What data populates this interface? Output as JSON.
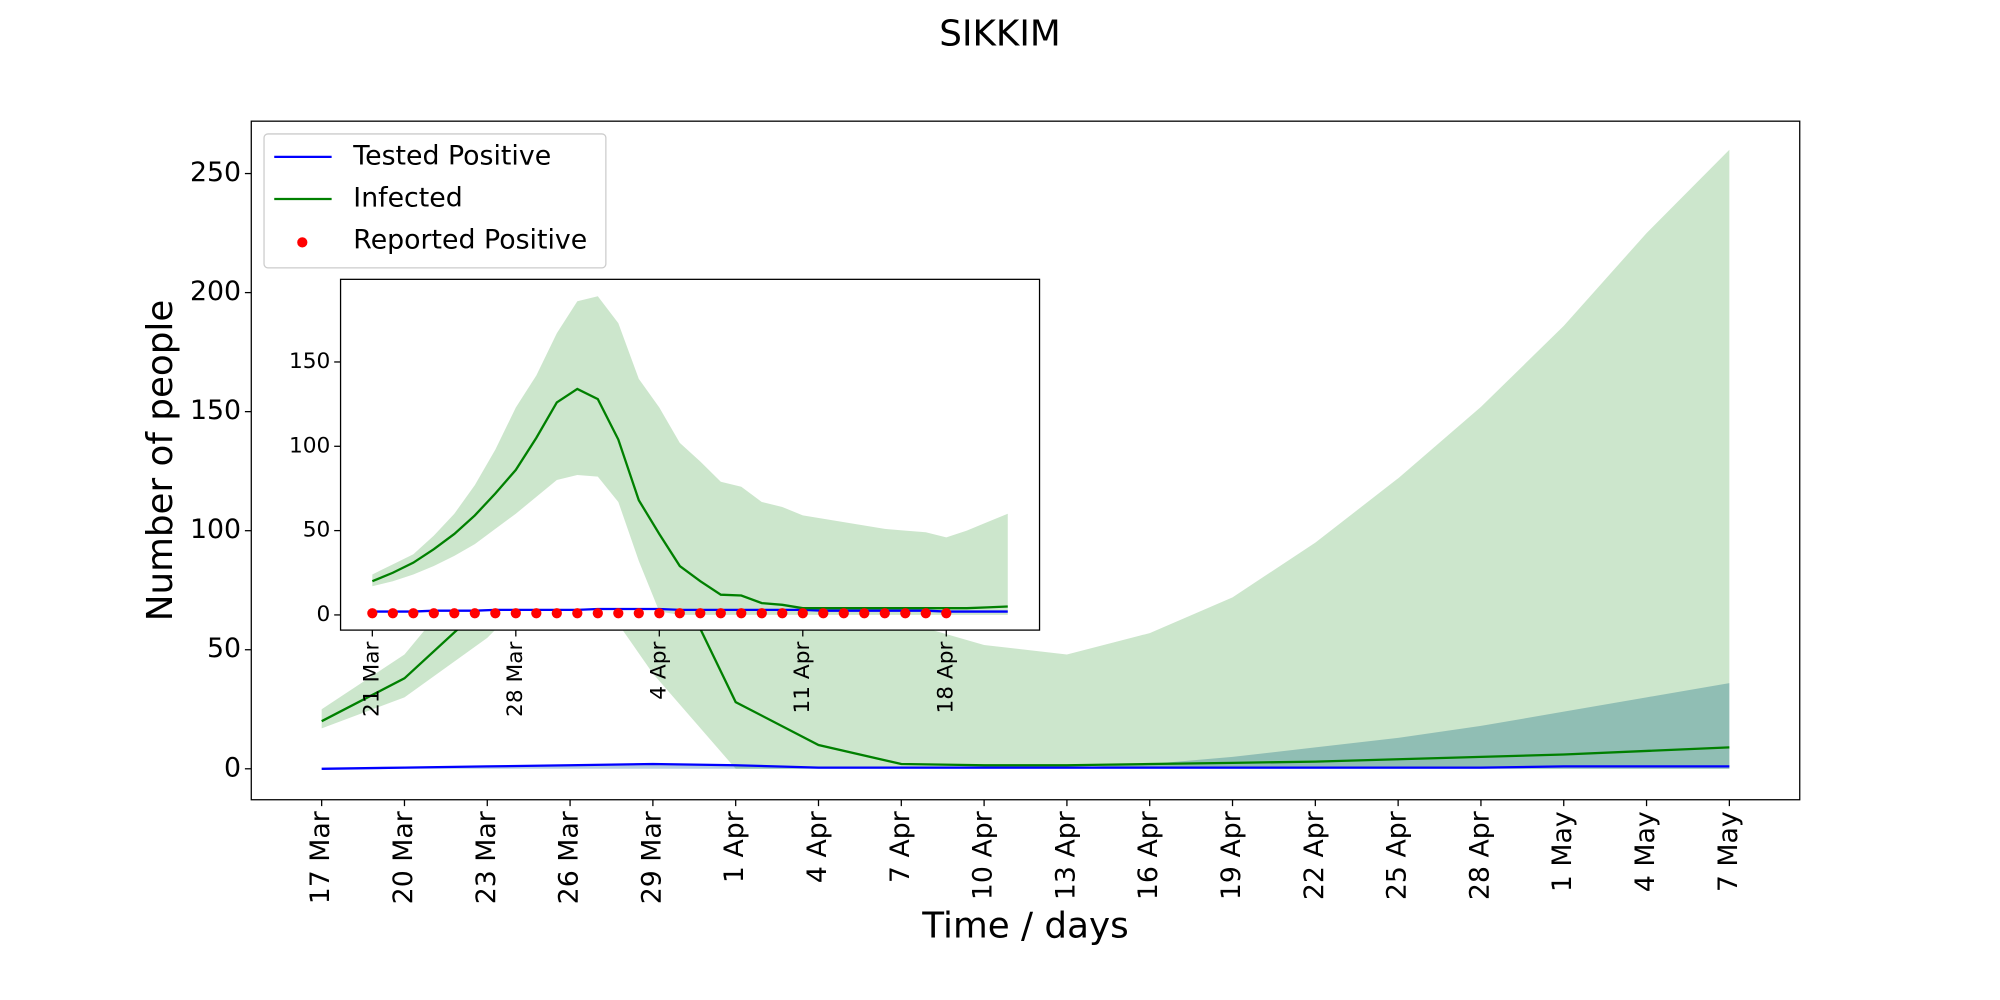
{
  "chart_data": [
    {
      "type": "line",
      "title": "SIKKIM",
      "xlabel": "Time / days",
      "ylabel": "Number of people",
      "x": [
        "17 Mar",
        "20 Mar",
        "23 Mar",
        "26 Mar",
        "29 Mar",
        "1 Apr",
        "4 Apr",
        "7 Apr",
        "10 Apr",
        "13 Apr",
        "16 Apr",
        "19 Apr",
        "22 Apr",
        "25 Apr",
        "28 Apr",
        "1 May",
        "4 May",
        "7 May"
      ],
      "xticks": [
        "17 Mar",
        "20 Mar",
        "23 Mar",
        "26 Mar",
        "29 Mar",
        "1 Apr",
        "4 Apr",
        "7 Apr",
        "10 Apr",
        "13 Apr",
        "16 Apr",
        "19 Apr",
        "22 Apr",
        "25 Apr",
        "28 Apr",
        "1 May",
        "4 May",
        "7 May"
      ],
      "ylim": [
        -13,
        272
      ],
      "yticks": [
        0,
        50,
        100,
        150,
        200,
        250
      ],
      "legend": "upper left",
      "series": [
        {
          "name": "Tested Positive",
          "color": "#0000ff",
          "values": [
            0,
            0.5,
            1,
            1.5,
            2,
            1.5,
            0.5,
            0.5,
            0.5,
            0.5,
            0.5,
            0.5,
            0.5,
            0.5,
            0.5,
            1,
            1,
            1
          ],
          "band": {
            "color": "#4682b4",
            "lower": [
              0,
              0,
              0,
              0,
              0,
              0,
              0,
              0,
              0,
              0,
              0,
              0,
              0,
              0,
              0,
              0,
              0,
              0
            ],
            "upper": [
              0,
              0.5,
              1,
              1.5,
              2,
              1.5,
              0.5,
              0.5,
              0.5,
              0.5,
              2,
              5,
              9,
              13,
              18,
              24,
              30,
              36
            ]
          }
        },
        {
          "name": "Infected",
          "color": "#008000",
          "values": [
            20,
            38,
            70,
            110,
            100,
            28,
            10,
            2,
            1.5,
            1.5,
            2,
            2.5,
            3,
            4,
            5,
            6,
            7.5,
            9
          ],
          "band": {
            "color": "#008000",
            "lower": [
              17,
              30,
              55,
              90,
              40,
              0,
              0,
              0,
              0,
              0,
              0,
              0,
              0,
              0,
              0,
              0,
              0,
              0
            ],
            "upper": [
              25,
              48,
              90,
              140,
              150,
              100,
              75,
              62,
              52,
              48,
              57,
              72,
              95,
              122,
              152,
              186,
              225,
              260
            ]
          }
        },
        {
          "name": "Reported Positive",
          "color": "#ff0000",
          "marker": "o",
          "values": [
            null,
            null,
            null,
            null,
            null,
            null,
            null,
            null,
            null,
            null,
            null,
            null,
            null,
            null,
            null,
            null,
            null,
            null
          ]
        }
      ]
    },
    {
      "type": "line",
      "x": [
        "21 Mar",
        "22 Mar",
        "23 Mar",
        "24 Mar",
        "25 Mar",
        "26 Mar",
        "27 Mar",
        "28 Mar",
        "29 Mar",
        "30 Mar",
        "31 Mar",
        "1 Apr",
        "2 Apr",
        "3 Apr",
        "4 Apr",
        "5 Apr",
        "6 Apr",
        "7 Apr",
        "8 Apr",
        "9 Apr",
        "10 Apr",
        "11 Apr",
        "12 Apr",
        "13 Apr",
        "14 Apr",
        "15 Apr",
        "16 Apr",
        "17 Apr",
        "18 Apr",
        "19 Apr",
        "20 Apr",
        "21 Apr"
      ],
      "xticks": [
        "21 Mar",
        "28 Mar",
        "4 Apr",
        "11 Apr",
        "18 Apr"
      ],
      "ylim": [
        -9,
        199
      ],
      "yticks": [
        0,
        50,
        100,
        150
      ],
      "series": [
        {
          "name": "Tested Positive",
          "color": "#0000ff",
          "values": [
            2,
            2,
            2,
            2.5,
            2.5,
            2.5,
            3,
            3,
            3,
            3,
            3,
            3.5,
            3.5,
            3.5,
            3.5,
            3,
            3,
            3,
            3,
            3,
            3,
            3,
            2.5,
            2.5,
            2.5,
            2.5,
            2.5,
            2.5,
            2,
            2,
            2,
            2
          ]
        },
        {
          "name": "Infected",
          "color": "#008000",
          "values": [
            20,
            25,
            31,
            39,
            48,
            59,
            72,
            86,
            105,
            126,
            134,
            128,
            104,
            68,
            48,
            29,
            20,
            12,
            11.5,
            7,
            6,
            4,
            4,
            4,
            4,
            4,
            4,
            4,
            4,
            4,
            4.5,
            5
          ],
          "band": {
            "color": "#008000",
            "lower": [
              17,
              20,
              24,
              29,
              35,
              42,
              51,
              60,
              70,
              80,
              83,
              82,
              67,
              32,
              2,
              0,
              0,
              0,
              0,
              0,
              0,
              0,
              0,
              0,
              0,
              0,
              0,
              0,
              0,
              0,
              0,
              0
            ],
            "upper": [
              24,
              30,
              36,
              47,
              60,
              77,
              98,
              123,
              142,
              167,
              186,
              189,
              173,
              140,
              123,
              102,
              91,
              79,
              76,
              67,
              64,
              59,
              57,
              55,
              53,
              51,
              50,
              49,
              46,
              50,
              55,
              60
            ]
          }
        },
        {
          "name": "Reported Positive",
          "color": "#ff0000",
          "marker": "o",
          "values": [
            1,
            1,
            1,
            1,
            1,
            1,
            1,
            1,
            1,
            1,
            1,
            1,
            1,
            1,
            1,
            1,
            1,
            1,
            1,
            1,
            1,
            1,
            1,
            1,
            1,
            1,
            1,
            1,
            1,
            null,
            null,
            null
          ]
        }
      ]
    }
  ]
}
